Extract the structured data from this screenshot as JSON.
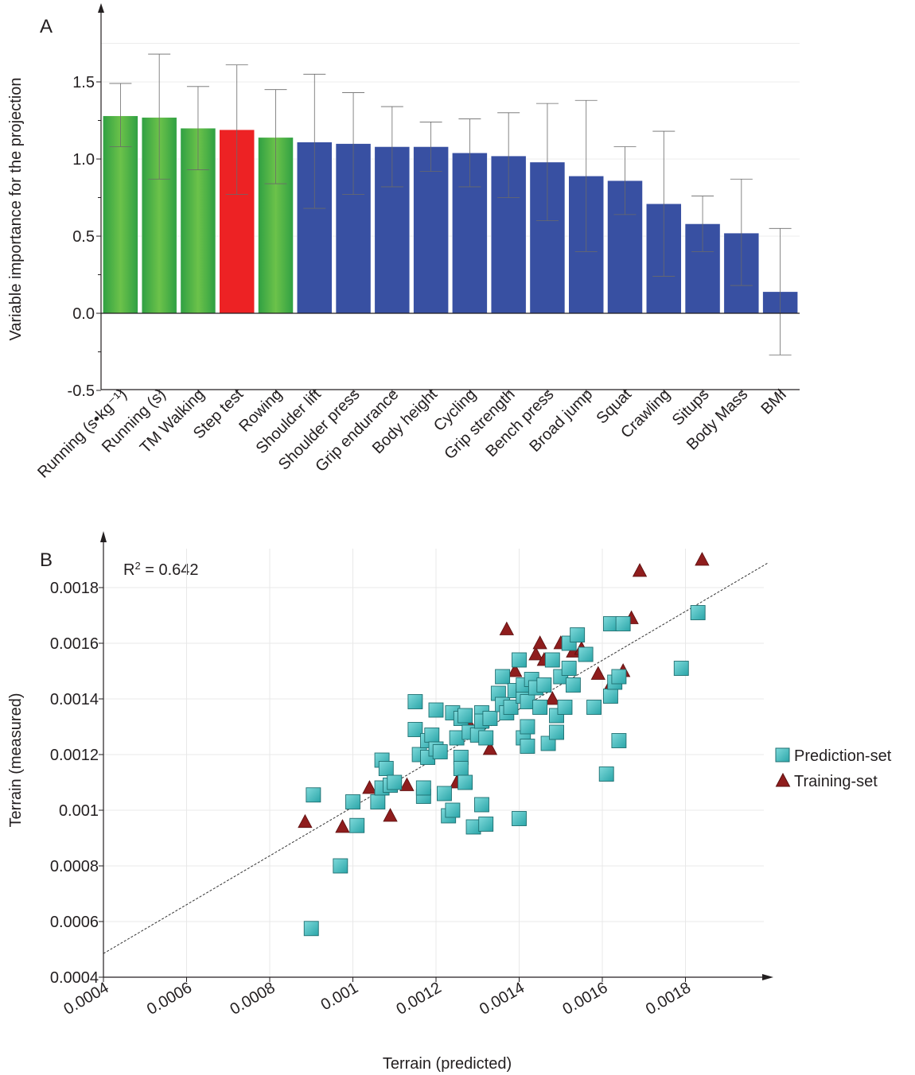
{
  "chart_data": [
    {
      "panel_label": "A",
      "type": "bar",
      "ylabel": "Variable importance for the projection",
      "ylim": [
        -0.5,
        1.75
      ],
      "yticks": [
        -0.5,
        0.0,
        0.5,
        1.0,
        1.5
      ],
      "ytick_labels": [
        "-0.5",
        "0.0",
        "0.5",
        "1.0",
        "1.5"
      ],
      "grid": "horizontal",
      "colors": {
        "green": "#4bb848",
        "red": "#ed2224",
        "blue": "#3850a2"
      },
      "bars": [
        {
          "label": "Running (s•kg⁻¹)",
          "value": 1.28,
          "err_low": 1.08,
          "err_high": 1.49,
          "color": "green"
        },
        {
          "label": "Running (s)",
          "value": 1.27,
          "err_low": 0.87,
          "err_high": 1.68,
          "color": "green"
        },
        {
          "label": "TM Walking",
          "value": 1.2,
          "err_low": 0.93,
          "err_high": 1.47,
          "color": "green"
        },
        {
          "label": "Step test",
          "value": 1.19,
          "err_low": 0.77,
          "err_high": 1.61,
          "color": "red"
        },
        {
          "label": "Rowing",
          "value": 1.14,
          "err_low": 0.84,
          "err_high": 1.45,
          "color": "green"
        },
        {
          "label": "Shoulder lift",
          "value": 1.11,
          "err_low": 0.68,
          "err_high": 1.55,
          "color": "blue"
        },
        {
          "label": "Shoulder press",
          "value": 1.1,
          "err_low": 0.77,
          "err_high": 1.43,
          "color": "blue"
        },
        {
          "label": "Grip endurance",
          "value": 1.08,
          "err_low": 0.82,
          "err_high": 1.34,
          "color": "blue"
        },
        {
          "label": "Body height",
          "value": 1.08,
          "err_low": 0.92,
          "err_high": 1.24,
          "color": "blue"
        },
        {
          "label": "Cycling",
          "value": 1.04,
          "err_low": 0.82,
          "err_high": 1.26,
          "color": "blue"
        },
        {
          "label": "Grip strength",
          "value": 1.02,
          "err_low": 0.75,
          "err_high": 1.3,
          "color": "blue"
        },
        {
          "label": "Bench press",
          "value": 0.98,
          "err_low": 0.6,
          "err_high": 1.36,
          "color": "blue"
        },
        {
          "label": "Broad jump",
          "value": 0.89,
          "err_low": 0.4,
          "err_high": 1.38,
          "color": "blue"
        },
        {
          "label": "Squat",
          "value": 0.86,
          "err_low": 0.64,
          "err_high": 1.08,
          "color": "blue"
        },
        {
          "label": "Crawling",
          "value": 0.71,
          "err_low": 0.24,
          "err_high": 1.18,
          "color": "blue"
        },
        {
          "label": "Situps",
          "value": 0.58,
          "err_low": 0.4,
          "err_high": 0.76,
          "color": "blue"
        },
        {
          "label": "Body Mass",
          "value": 0.52,
          "err_low": 0.18,
          "err_high": 0.87,
          "color": "blue"
        },
        {
          "label": "BMI",
          "value": 0.14,
          "err_low": -0.27,
          "err_high": 0.55,
          "color": "blue"
        }
      ]
    },
    {
      "panel_label": "B",
      "type": "scatter",
      "annotation": "R² = 0.642",
      "xlabel": "Terrain (predicted)",
      "ylabel": "Terrain (measured)",
      "xlim": [
        0.0004,
        0.002
      ],
      "ylim": [
        0.0004,
        0.00195
      ],
      "xticks": [
        0.0004,
        0.0006,
        0.0008,
        0.001,
        0.0012,
        0.0014,
        0.0016,
        0.0018
      ],
      "xtick_labels": [
        "0.0004",
        "0.0006",
        "0.0008",
        "0.001",
        "0.0012",
        "0.0014",
        "0.0016",
        "0.0018"
      ],
      "yticks": [
        0.0004,
        0.0006,
        0.0008,
        0.001,
        0.0012,
        0.0014,
        0.0016,
        0.0018
      ],
      "ytick_labels": [
        "0.0004",
        "0.0006",
        "0.0008",
        "0.001",
        "0.0012",
        "0.0014",
        "0.0016",
        "0.0018"
      ],
      "grid": "both",
      "legend_position": "right",
      "fit_line": {
        "x": [
          0.0004,
          0.002
        ],
        "y": [
          0.000485,
          0.00189
        ]
      },
      "colors": {
        "prediction": "#3bbfc0",
        "training": "#8f1d1d"
      },
      "series": [
        {
          "name": "Training-set",
          "marker": "triangle",
          "points": [
            [
              0.000885,
              0.000958
            ],
            [
              0.000975,
              0.00094
            ],
            [
              0.00104,
              0.00108
            ],
            [
              0.00109,
              0.00098
            ],
            [
              0.00113,
              0.00109
            ],
            [
              0.00125,
              0.0011
            ],
            [
              0.00128,
              0.00131
            ],
            [
              0.00133,
              0.00122
            ],
            [
              0.00137,
              0.00165
            ],
            [
              0.00139,
              0.0015
            ],
            [
              0.00144,
              0.00156
            ],
            [
              0.00145,
              0.0016
            ],
            [
              0.00146,
              0.00154
            ],
            [
              0.00148,
              0.0014
            ],
            [
              0.0015,
              0.0016
            ],
            [
              0.00153,
              0.00157
            ],
            [
              0.00155,
              0.00158
            ],
            [
              0.00159,
              0.00149
            ],
            [
              0.00162,
              0.00145
            ],
            [
              0.00165,
              0.0015
            ],
            [
              0.00167,
              0.00169
            ],
            [
              0.00169,
              0.00186
            ],
            [
              0.00184,
              0.0019
            ]
          ]
        },
        {
          "name": "Prediction-set",
          "marker": "square",
          "points": [
            [
              0.0009,
              0.000575
            ],
            [
              0.000905,
              0.001055
            ],
            [
              0.00097,
              0.0008
            ],
            [
              0.001,
              0.00103
            ],
            [
              0.00101,
              0.000945
            ],
            [
              0.00106,
              0.00103
            ],
            [
              0.00107,
              0.00118
            ],
            [
              0.00107,
              0.00108
            ],
            [
              0.00108,
              0.00115
            ],
            [
              0.00109,
              0.00109
            ],
            [
              0.0011,
              0.0011
            ],
            [
              0.00115,
              0.00139
            ],
            [
              0.00115,
              0.00129
            ],
            [
              0.00116,
              0.0012
            ],
            [
              0.00117,
              0.00105
            ],
            [
              0.00117,
              0.00108
            ],
            [
              0.00118,
              0.00119
            ],
            [
              0.00118,
              0.00125
            ],
            [
              0.00119,
              0.00127
            ],
            [
              0.0012,
              0.00136
            ],
            [
              0.0012,
              0.00122
            ],
            [
              0.00121,
              0.00121
            ],
            [
              0.00122,
              0.00106
            ],
            [
              0.00123,
              0.00098
            ],
            [
              0.00124,
              0.00135
            ],
            [
              0.00124,
              0.001
            ],
            [
              0.00125,
              0.00126
            ],
            [
              0.00126,
              0.00119
            ],
            [
              0.00126,
              0.00133
            ],
            [
              0.00126,
              0.00115
            ],
            [
              0.00127,
              0.00134
            ],
            [
              0.00127,
              0.0011
            ],
            [
              0.00128,
              0.00128
            ],
            [
              0.00129,
              0.00094
            ],
            [
              0.0013,
              0.00127
            ],
            [
              0.00131,
              0.00135
            ],
            [
              0.00131,
              0.00132
            ],
            [
              0.00131,
              0.00102
            ],
            [
              0.00132,
              0.00095
            ],
            [
              0.00132,
              0.00126
            ],
            [
              0.00133,
              0.00133
            ],
            [
              0.00135,
              0.00142
            ],
            [
              0.00136,
              0.00148
            ],
            [
              0.00136,
              0.00138
            ],
            [
              0.00137,
              0.00135
            ],
            [
              0.00138,
              0.00137
            ],
            [
              0.00139,
              0.00143
            ],
            [
              0.0014,
              0.00097
            ],
            [
              0.0014,
              0.00154
            ],
            [
              0.00141,
              0.00126
            ],
            [
              0.00141,
              0.00141
            ],
            [
              0.00141,
              0.00145
            ],
            [
              0.00142,
              0.00123
            ],
            [
              0.00142,
              0.00139
            ],
            [
              0.00142,
              0.0013
            ],
            [
              0.00143,
              0.00147
            ],
            [
              0.00144,
              0.00144
            ],
            [
              0.00145,
              0.00137
            ],
            [
              0.00146,
              0.00145
            ],
            [
              0.00147,
              0.00124
            ],
            [
              0.00148,
              0.00154
            ],
            [
              0.00149,
              0.00134
            ],
            [
              0.00149,
              0.00128
            ],
            [
              0.0015,
              0.00148
            ],
            [
              0.00151,
              0.00137
            ],
            [
              0.00152,
              0.0016
            ],
            [
              0.00152,
              0.00151
            ],
            [
              0.00153,
              0.00145
            ],
            [
              0.00154,
              0.00163
            ],
            [
              0.00156,
              0.00156
            ],
            [
              0.00158,
              0.00137
            ],
            [
              0.00161,
              0.00113
            ],
            [
              0.00162,
              0.00167
            ],
            [
              0.00162,
              0.00141
            ],
            [
              0.00163,
              0.00146
            ],
            [
              0.00164,
              0.00148
            ],
            [
              0.00164,
              0.00125
            ],
            [
              0.00165,
              0.00167
            ],
            [
              0.00179,
              0.00151
            ],
            [
              0.00183,
              0.00171
            ]
          ]
        }
      ]
    }
  ]
}
